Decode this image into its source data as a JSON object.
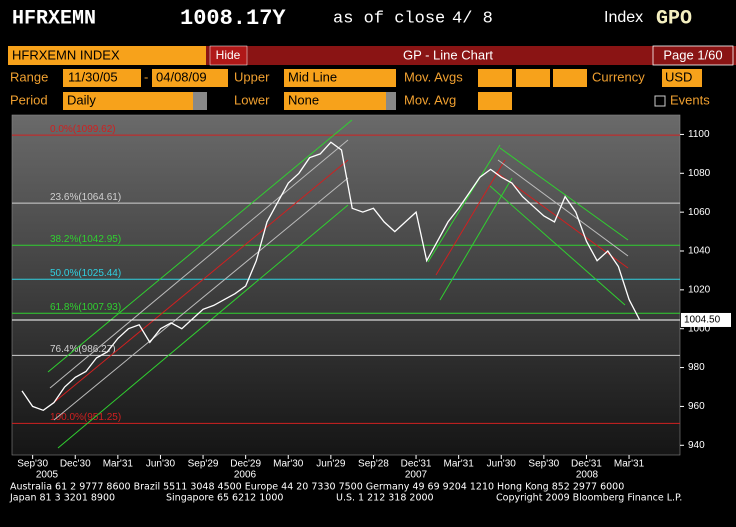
{
  "header": {
    "ticker": "HFRXEMN",
    "price": "1008.17Y",
    "as_of": "as of close",
    "date": "4/ 8",
    "market": "Index",
    "function": "GPO"
  },
  "toolbar": {
    "security": "HFRXEMN INDEX",
    "hide": "Hide",
    "title": "GP - Line Chart",
    "page": "Page 1/60"
  },
  "form": {
    "range_label": "Range",
    "start": "11/30/05",
    "dash": "-",
    "end": "04/08/09",
    "upper_label": "Upper",
    "upper": "Mid Line",
    "mov_avgs_label": "Mov. Avgs",
    "currency_label": "Currency",
    "currency": "USD",
    "period_label": "Period",
    "period": "Daily",
    "lower_label": "Lower",
    "lower": "None",
    "mov_avg_label": "Mov. Avg",
    "events": "Events"
  },
  "chart_data": {
    "type": "line",
    "categories": [
      null,
      "Sep'30",
      null,
      null,
      null,
      "Dec'30",
      null,
      null,
      null,
      "Mar'31",
      null,
      null,
      null,
      "Jun'30",
      null,
      null,
      null,
      "Sep'29",
      null,
      null,
      null,
      "Dec'29",
      null,
      null,
      null,
      "Mar'30",
      null,
      null,
      null,
      "Jun'29",
      null,
      null,
      null,
      "Sep'28",
      null,
      null,
      null,
      "Dec'31",
      null,
      null,
      null,
      "Mar'31",
      null,
      null,
      null,
      "Jun'30",
      null,
      null,
      null,
      "Sep'30",
      null,
      null,
      null,
      "Dec'31",
      null,
      null,
      null,
      "Mar'31",
      null
    ],
    "values": [
      968,
      960,
      958,
      962,
      970,
      975,
      978,
      985,
      988,
      995,
      1000,
      1002,
      993,
      1000,
      1003,
      1000,
      1005,
      1010,
      1012,
      1015,
      1018,
      1022,
      1035,
      1055,
      1065,
      1075,
      1080,
      1088,
      1090,
      1096,
      1092,
      1062,
      1060,
      1062,
      1055,
      1050,
      1055,
      1060,
      1035,
      1045,
      1055,
      1062,
      1070,
      1078,
      1082,
      1078,
      1075,
      1068,
      1063,
      1058,
      1055,
      1068,
      1060,
      1045,
      1035,
      1040,
      1032,
      1015,
      1004.5
    ],
    "color": "#ffffff",
    "year_labels": [
      "2005",
      "2006",
      "2007",
      "2008"
    ],
    "ylim": [
      935,
      1110
    ],
    "yticks": [
      940,
      960,
      980,
      1000,
      1020,
      1040,
      1060,
      1080,
      1100
    ],
    "last_price": {
      "value": 1004.5,
      "label": "1004.50"
    },
    "levels": [
      {
        "label": "0.0%(1099.62)",
        "value": 1099.62,
        "color": "#d02020"
      },
      {
        "label": "23.6%(1064.61)",
        "value": 1064.61,
        "color": "#d0d0d0"
      },
      {
        "label": "38.2%(1042.95)",
        "value": 1042.95,
        "color": "#30d030"
      },
      {
        "label": "50.0%(1025.44)",
        "value": 1025.44,
        "color": "#30d0e0"
      },
      {
        "label": "61.8%(1007.93)",
        "value": 1007.93,
        "color": "#30d030"
      },
      {
        "label": "76.4%(986.27)",
        "value": 986.27,
        "color": "#d0d0d0"
      },
      {
        "label": "100.0%(951.25)",
        "value": 951.25,
        "color": "#d02020"
      }
    ]
  },
  "footer": {
    "line1": "Australia 61 2 9777 8600 Brazil 5511 3048 4500 Europe 44 20 7330 7500 Germany 49 69 9204 1210 Hong Kong 852 2977 6000",
    "line2": [
      "Japan 81 3 3201 8900",
      "Singapore 65 6212 1000",
      "U.S. 1 212 318 2000",
      "Copyright 2009 Bloomberg Finance L.P."
    ]
  }
}
